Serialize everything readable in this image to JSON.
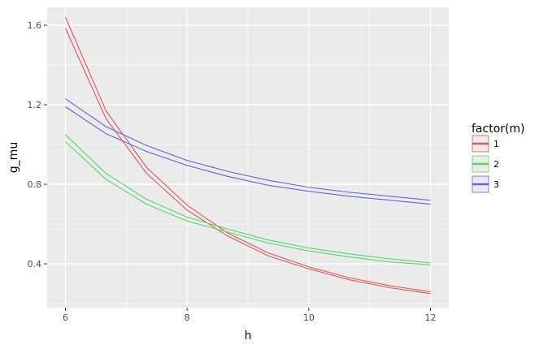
{
  "chart_data": {
    "type": "line",
    "x": [
      6,
      6.6667,
      7.3333,
      8,
      8.6667,
      9.3333,
      10,
      10.6667,
      11.3333,
      12
    ],
    "xlabel": "h",
    "ylabel": "g_mu",
    "xlim": [
      5.7,
      12.3
    ],
    "ylim": [
      0.18,
      1.69
    ],
    "x_ticks": [
      6,
      8,
      10,
      12
    ],
    "x_tick_labels": [
      "6",
      "8",
      "10",
      "12"
    ],
    "y_ticks": [
      0.4,
      0.8,
      1.2,
      1.6
    ],
    "y_tick_labels": [
      "0.4",
      "0.8",
      "1.2",
      "1.6"
    ],
    "grid": true,
    "background": "#ebebeb",
    "gridline_color": "#ffffff",
    "legend": {
      "title": "factor(m)",
      "position": "right",
      "entries": [
        {
          "label": "1",
          "color": "#e15759"
        },
        {
          "label": "2",
          "color": "#58d66a"
        },
        {
          "label": "3",
          "color": "#6a63e0"
        }
      ]
    },
    "series": [
      {
        "name": "1",
        "color": "#e15759",
        "upper": [
          1.64,
          1.17,
          0.885,
          0.695,
          0.555,
          0.455,
          0.385,
          0.33,
          0.29,
          0.26
        ],
        "lower": [
          1.585,
          1.13,
          0.855,
          0.67,
          0.54,
          0.44,
          0.375,
          0.32,
          0.28,
          0.25
        ]
      },
      {
        "name": "2",
        "color": "#58d66a",
        "upper": [
          1.05,
          0.855,
          0.725,
          0.635,
          0.575,
          0.52,
          0.48,
          0.45,
          0.425,
          0.405
        ],
        "lower": [
          1.015,
          0.825,
          0.7,
          0.615,
          0.56,
          0.505,
          0.465,
          0.435,
          0.41,
          0.395
        ]
      },
      {
        "name": "3",
        "color": "#6a63e0",
        "upper": [
          1.23,
          1.09,
          0.995,
          0.92,
          0.865,
          0.82,
          0.785,
          0.76,
          0.74,
          0.72
        ],
        "lower": [
          1.19,
          1.055,
          0.965,
          0.895,
          0.84,
          0.795,
          0.765,
          0.74,
          0.72,
          0.7
        ]
      }
    ]
  }
}
